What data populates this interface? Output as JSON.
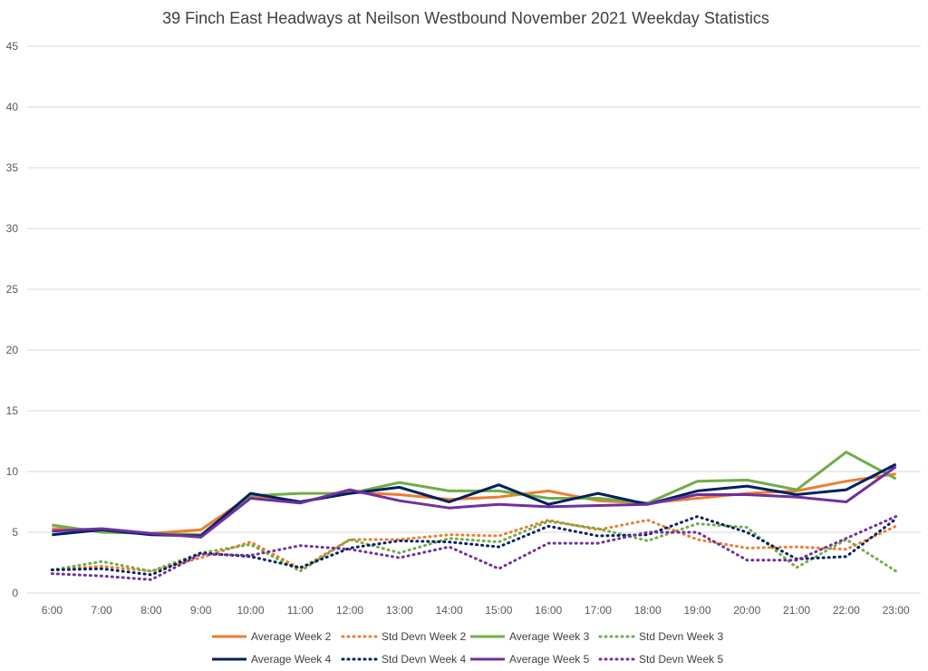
{
  "chart_data": {
    "type": "line",
    "title": "39 Finch East Headways at Neilson Westbound November 2021 Weekday Statistics",
    "xlabel": "",
    "ylabel": "",
    "ylim": [
      0,
      45
    ],
    "yticks": [
      0,
      5,
      10,
      15,
      20,
      25,
      30,
      35,
      40,
      45
    ],
    "grid": true,
    "legend_position": "bottom",
    "categories": [
      "6:00",
      "7:00",
      "8:00",
      "9:00",
      "10:00",
      "11:00",
      "12:00",
      "13:00",
      "14:00",
      "15:00",
      "16:00",
      "17:00",
      "18:00",
      "19:00",
      "20:00",
      "21:00",
      "22:00",
      "23:00"
    ],
    "series": [
      {
        "name": "Average Week 2",
        "style": "solid",
        "color": "#ED7D31",
        "values": [
          5.3,
          5.2,
          4.9,
          5.2,
          8.0,
          7.5,
          8.3,
          8.1,
          7.7,
          7.9,
          8.4,
          7.6,
          7.4,
          7.8,
          8.2,
          8.4,
          9.2,
          9.8
        ]
      },
      {
        "name": "Std Devn Week 2",
        "style": "dotted",
        "color": "#ED7D31",
        "values": [
          1.9,
          2.2,
          1.8,
          2.9,
          4.2,
          2.0,
          4.4,
          4.4,
          4.8,
          4.7,
          6.0,
          5.2,
          6.0,
          4.4,
          3.7,
          3.8,
          3.6,
          5.5
        ]
      },
      {
        "name": "Average Week 3",
        "style": "solid",
        "color": "#70AD47",
        "values": [
          5.6,
          5.0,
          4.9,
          4.8,
          8.0,
          8.2,
          8.2,
          9.1,
          8.4,
          8.4,
          7.8,
          7.8,
          7.4,
          9.2,
          9.3,
          8.5,
          11.6,
          9.4
        ]
      },
      {
        "name": "Std Devn Week 3",
        "style": "dotted",
        "color": "#70AD47",
        "values": [
          1.9,
          2.6,
          1.8,
          3.3,
          4.0,
          1.8,
          4.4,
          3.3,
          4.5,
          4.2,
          5.9,
          5.3,
          4.3,
          5.7,
          5.4,
          2.1,
          4.4,
          1.8
        ]
      },
      {
        "name": "Average Week 4",
        "style": "solid",
        "color": "#002060",
        "values": [
          4.8,
          5.2,
          4.8,
          4.7,
          8.2,
          7.5,
          8.2,
          8.7,
          7.5,
          8.9,
          7.3,
          8.2,
          7.3,
          8.4,
          8.8,
          8.1,
          8.5,
          10.6
        ]
      },
      {
        "name": "Std Devn Week 4",
        "style": "dotted",
        "color": "#002060",
        "values": [
          1.9,
          2.0,
          1.5,
          3.3,
          3.0,
          2.1,
          3.7,
          4.3,
          4.2,
          3.8,
          5.5,
          4.7,
          4.8,
          6.3,
          5.0,
          2.8,
          3.0,
          6.1
        ]
      },
      {
        "name": "Average Week 5",
        "style": "solid",
        "color": "#7030A0",
        "values": [
          5.1,
          5.3,
          4.9,
          4.6,
          7.8,
          7.4,
          8.5,
          7.6,
          7.0,
          7.3,
          7.1,
          7.2,
          7.3,
          8.1,
          8.1,
          7.9,
          7.5,
          10.4
        ]
      },
      {
        "name": "Std Devn Week 5",
        "style": "dotted",
        "color": "#7030A0",
        "values": [
          1.6,
          1.4,
          1.1,
          3.2,
          3.1,
          3.9,
          3.6,
          2.9,
          3.8,
          2.0,
          4.1,
          4.1,
          5.0,
          5.0,
          2.7,
          2.7,
          4.5,
          6.3
        ]
      }
    ]
  }
}
